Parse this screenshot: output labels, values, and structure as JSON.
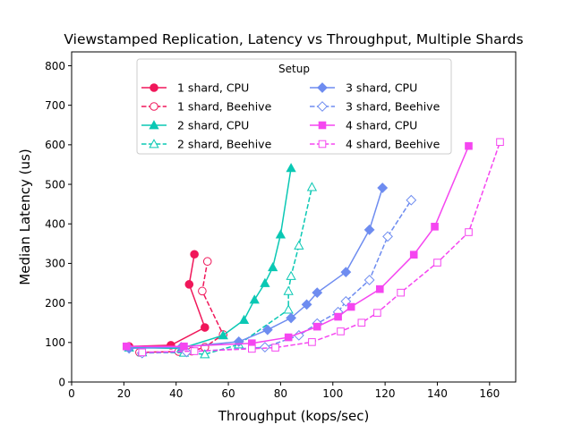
{
  "chart_data": {
    "type": "line",
    "title": "Viewstamped Replication, Latency vs Throughput, Multiple Shards",
    "xlabel": "Throughput (kops/sec)",
    "ylabel": "Median Latency (us)",
    "xlim": [
      0,
      170
    ],
    "ylim": [
      0,
      835
    ],
    "xticks": [
      0,
      20,
      40,
      60,
      80,
      100,
      120,
      140,
      160
    ],
    "yticks": [
      0,
      100,
      200,
      300,
      400,
      500,
      600,
      700,
      800
    ],
    "grid": false,
    "legend": {
      "title": "Setup",
      "placement": "top-center",
      "columns": 2
    },
    "series": [
      {
        "name": "1 shard, CPU",
        "color": "#f0175a",
        "marker": "circle",
        "filled": true,
        "dashed": false,
        "points": [
          [
            22,
            90
          ],
          [
            38,
            93
          ],
          [
            51,
            138
          ],
          [
            45,
            247
          ],
          [
            47,
            323
          ]
        ]
      },
      {
        "name": "1 shard, Beehive",
        "color": "#f0175a",
        "marker": "circle",
        "filled": false,
        "dashed": true,
        "points": [
          [
            26,
            75
          ],
          [
            41,
            77
          ],
          [
            46,
            78
          ],
          [
            51,
            88
          ],
          [
            58,
            120
          ],
          [
            50,
            230
          ],
          [
            52,
            305
          ]
        ]
      },
      {
        "name": "2 shard, CPU",
        "color": "#0ac8b4",
        "marker": "triangle",
        "filled": true,
        "dashed": false,
        "points": [
          [
            22,
            87
          ],
          [
            42,
            85
          ],
          [
            58,
            118
          ],
          [
            66,
            157
          ],
          [
            70,
            208
          ],
          [
            74,
            250
          ],
          [
            77,
            290
          ],
          [
            80,
            373
          ],
          [
            84,
            541
          ]
        ]
      },
      {
        "name": "2 shard, Beehive",
        "color": "#0ac8b4",
        "marker": "triangle",
        "filled": false,
        "dashed": true,
        "points": [
          [
            27,
            75
          ],
          [
            43,
            74
          ],
          [
            51,
            70
          ],
          [
            64,
            95
          ],
          [
            83,
            183
          ],
          [
            83,
            230
          ],
          [
            84,
            268
          ],
          [
            87,
            345
          ],
          [
            92,
            493
          ]
        ]
      },
      {
        "name": "3 shard, CPU",
        "color": "#6e8cf0",
        "marker": "diamond",
        "filled": true,
        "dashed": false,
        "points": [
          [
            22,
            85
          ],
          [
            42,
            88
          ],
          [
            64,
            102
          ],
          [
            75,
            132
          ],
          [
            84,
            162
          ],
          [
            90,
            196
          ],
          [
            94,
            226
          ],
          [
            105,
            278
          ],
          [
            114,
            385
          ],
          [
            119,
            491
          ]
        ]
      },
      {
        "name": "3 shard, Beehive",
        "color": "#6e8cf0",
        "marker": "diamond",
        "filled": false,
        "dashed": true,
        "points": [
          [
            27,
            73
          ],
          [
            44,
            76
          ],
          [
            74,
            88
          ],
          [
            87,
            118
          ],
          [
            94,
            148
          ],
          [
            102,
            177
          ],
          [
            105,
            204
          ],
          [
            114,
            258
          ],
          [
            121,
            368
          ],
          [
            130,
            460
          ]
        ]
      },
      {
        "name": "4 shard, CPU",
        "color": "#f546f0",
        "marker": "square",
        "filled": true,
        "dashed": false,
        "points": [
          [
            21,
            90
          ],
          [
            43,
            90
          ],
          [
            69,
            98
          ],
          [
            83,
            113
          ],
          [
            94,
            140
          ],
          [
            102,
            165
          ],
          [
            107,
            190
          ],
          [
            118,
            235
          ],
          [
            131,
            322
          ],
          [
            139,
            393
          ],
          [
            152,
            597
          ]
        ]
      },
      {
        "name": "4 shard, Beehive",
        "color": "#f546f0",
        "marker": "square",
        "filled": false,
        "dashed": true,
        "points": [
          [
            27,
            75
          ],
          [
            47,
            78
          ],
          [
            69,
            84
          ],
          [
            78,
            87
          ],
          [
            92,
            101
          ],
          [
            103,
            128
          ],
          [
            111,
            150
          ],
          [
            117,
            175
          ],
          [
            126,
            226
          ],
          [
            140,
            302
          ],
          [
            152,
            379
          ],
          [
            164,
            607
          ]
        ]
      }
    ]
  }
}
